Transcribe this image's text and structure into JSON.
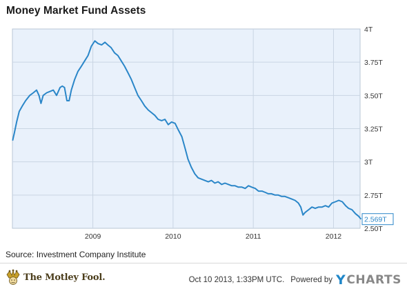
{
  "header": {
    "title": "Money Market Fund Assets"
  },
  "chart_data": {
    "type": "line",
    "title": "Money Market Fund Assets",
    "xlabel": "",
    "ylabel": "",
    "x_ticks": [
      "2009",
      "2010",
      "2011",
      "2012"
    ],
    "y_ticks": [
      "4T",
      "3.75T",
      "3.50T",
      "3.25T",
      "3T",
      "2.75T",
      "2.50T"
    ],
    "y_tick_values": [
      4.0,
      3.75,
      3.5,
      3.25,
      3.0,
      2.75,
      2.5
    ],
    "x_range": [
      "2008-01",
      "2012-05"
    ],
    "ylim": [
      2.5,
      4.0
    ],
    "grid": true,
    "line_color": "#2a86c8",
    "plot_background": "#e9f1fb",
    "last_value": 2.569,
    "last_value_label": "2.569T",
    "series": [
      {
        "x": [
          "2008-01-02",
          "2008-01-10",
          "2008-01-20",
          "2008-02-01",
          "2008-02-15",
          "2008-03-01",
          "2008-03-20",
          "2008-04-05",
          "2008-04-20",
          "2008-05-01",
          "2008-05-10",
          "2008-05-20",
          "2008-06-05",
          "2008-06-20",
          "2008-07-05",
          "2008-07-20",
          "2008-08-05",
          "2008-08-15",
          "2008-08-25",
          "2008-09-05",
          "2008-09-15",
          "2008-09-25",
          "2008-10-10",
          "2008-10-25",
          "2008-11-10",
          "2008-11-25",
          "2008-12-10",
          "2008-12-25",
          "2009-01-10",
          "2009-01-25",
          "2009-02-10",
          "2009-02-25",
          "2009-03-10",
          "2009-03-25",
          "2009-04-10",
          "2009-04-25",
          "2009-05-10",
          "2009-05-25",
          "2009-06-10",
          "2009-06-25",
          "2009-07-10",
          "2009-07-25",
          "2009-08-10",
          "2009-08-25",
          "2009-09-10",
          "2009-09-25",
          "2009-10-10",
          "2009-10-25",
          "2009-11-10",
          "2009-11-25",
          "2009-12-10",
          "2009-12-25",
          "2010-01-10",
          "2010-01-25",
          "2010-02-10",
          "2010-02-25",
          "2010-03-10",
          "2010-03-25",
          "2010-04-10",
          "2010-04-25",
          "2010-05-10",
          "2010-05-25",
          "2010-06-10",
          "2010-06-25",
          "2010-07-10",
          "2010-07-25",
          "2010-08-10",
          "2010-08-25",
          "2010-09-10",
          "2010-09-25",
          "2010-10-10",
          "2010-10-25",
          "2010-11-10",
          "2010-11-25",
          "2010-12-10",
          "2010-12-25",
          "2011-01-10",
          "2011-01-25",
          "2011-02-10",
          "2011-02-25",
          "2011-03-10",
          "2011-03-25",
          "2011-04-10",
          "2011-04-25",
          "2011-05-10",
          "2011-05-25",
          "2011-06-10",
          "2011-06-25",
          "2011-07-10",
          "2011-07-25",
          "2011-08-05",
          "2011-08-15",
          "2011-08-25",
          "2011-09-10",
          "2011-09-25",
          "2011-10-10",
          "2011-10-25",
          "2011-11-10",
          "2011-11-25",
          "2011-12-10",
          "2011-12-25",
          "2012-01-10",
          "2012-01-25",
          "2012-02-10",
          "2012-02-25",
          "2012-03-10",
          "2012-03-25",
          "2012-04-10",
          "2012-04-25",
          "2012-05-05"
        ],
        "values": [
          3.16,
          3.22,
          3.3,
          3.38,
          3.42,
          3.46,
          3.5,
          3.52,
          3.54,
          3.5,
          3.44,
          3.5,
          3.52,
          3.53,
          3.54,
          3.5,
          3.56,
          3.57,
          3.56,
          3.46,
          3.46,
          3.54,
          3.62,
          3.68,
          3.72,
          3.76,
          3.8,
          3.87,
          3.91,
          3.89,
          3.88,
          3.9,
          3.88,
          3.86,
          3.82,
          3.8,
          3.76,
          3.72,
          3.67,
          3.62,
          3.56,
          3.5,
          3.46,
          3.42,
          3.39,
          3.37,
          3.35,
          3.32,
          3.31,
          3.32,
          3.28,
          3.3,
          3.29,
          3.24,
          3.19,
          3.1,
          3.02,
          2.96,
          2.91,
          2.88,
          2.87,
          2.86,
          2.85,
          2.86,
          2.84,
          2.85,
          2.83,
          2.84,
          2.83,
          2.82,
          2.82,
          2.81,
          2.81,
          2.8,
          2.82,
          2.81,
          2.8,
          2.78,
          2.78,
          2.77,
          2.76,
          2.76,
          2.75,
          2.75,
          2.74,
          2.74,
          2.73,
          2.72,
          2.71,
          2.69,
          2.66,
          2.6,
          2.62,
          2.64,
          2.66,
          2.65,
          2.66,
          2.66,
          2.67,
          2.66,
          2.69,
          2.7,
          2.71,
          2.7,
          2.67,
          2.65,
          2.64,
          2.61,
          2.59,
          2.569
        ]
      }
    ]
  },
  "footer": {
    "source": "Source: Investment Company Institute",
    "logo_text": "The Motley Fool.",
    "logo_icon": "jester-icon",
    "timestamp": "Oct 10 2013, 1:33PM UTC.",
    "powered_by": "Powered by",
    "brand_y": "Y",
    "brand_rest": "CHARTS",
    "brand_color": "#1f87c9"
  }
}
